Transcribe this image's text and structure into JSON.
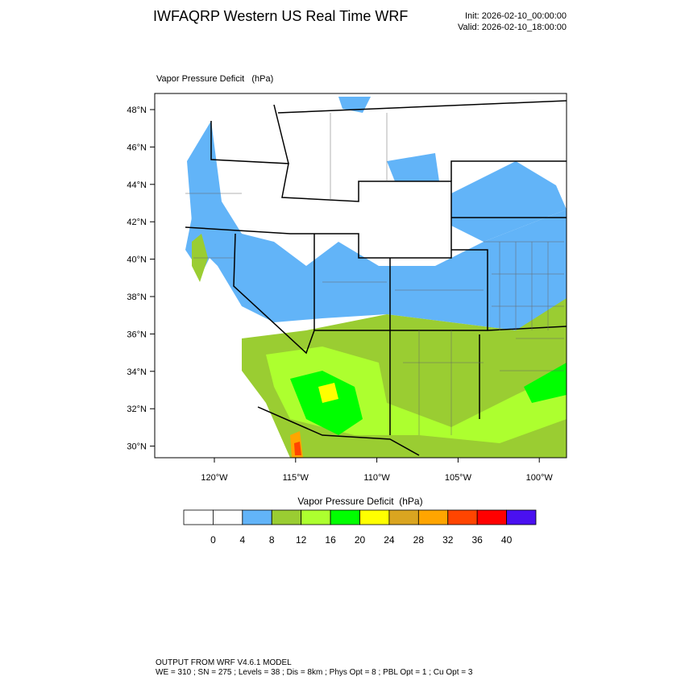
{
  "header": {
    "title": "IWFAQRP Western US Real Time WRF",
    "init": "Init: 2026-02-10_00:00:00",
    "valid": "Valid: 2026-02-10_18:00:00"
  },
  "map": {
    "title": "Vapor Pressure Deficit   (hPa)",
    "lat_labels": [
      "48°N",
      "46°N",
      "44°N",
      "42°N",
      "40°N",
      "38°N",
      "36°N",
      "34°N",
      "32°N",
      "30°N"
    ],
    "lon_labels": [
      "120°W",
      "115°W",
      "110°W",
      "105°W",
      "100°W"
    ]
  },
  "colorbar": {
    "title": "Vapor Pressure Deficit  (hPa)",
    "colors": [
      "#ffffff",
      "#ffffff",
      "#62b4f8",
      "#9acd32",
      "#adff2f",
      "#00ff00",
      "#ffff00",
      "#daa520",
      "#ffa500",
      "#ff4500",
      "#ff0000",
      "#4a10f0"
    ],
    "labels": [
      0,
      4,
      8,
      12,
      16,
      20,
      24,
      28,
      32,
      36,
      40
    ]
  },
  "footer": {
    "line1": "OUTPUT FROM WRF V4.6.1 MODEL",
    "line2": "WE = 310 ; SN = 275 ; Levels = 38 ; Dis = 8km ; Phys Opt = 8 ; PBL Opt = 1 ; Cu Opt = 3"
  }
}
